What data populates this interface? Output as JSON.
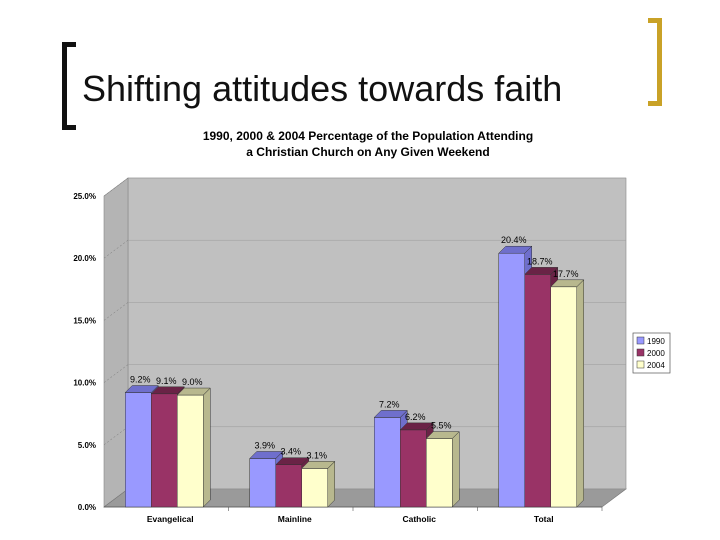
{
  "slide": {
    "title": "Shifting attitudes towards faith"
  },
  "chart_data": {
    "type": "bar",
    "title_lines": [
      "1990, 2000 & 2004 Percentage of the Population Attending",
      "a Christian Church on Any Given Weekend"
    ],
    "categories": [
      "Evangelical",
      "Mainline",
      "Catholic",
      "Total"
    ],
    "series": [
      {
        "name": "1990",
        "values": [
          9.2,
          3.9,
          7.2,
          20.4
        ],
        "labels": [
          "9.2%",
          "3.9%",
          "7.2%",
          "20.4%"
        ],
        "color": "#9999ff",
        "side": "#6f6fcc"
      },
      {
        "name": "2000",
        "values": [
          9.1,
          3.4,
          6.2,
          18.7
        ],
        "labels": [
          "9.1%",
          "3.4%",
          "6.2%",
          "18.7%"
        ],
        "color": "#993366",
        "side": "#6a2346"
      },
      {
        "name": "2004",
        "values": [
          9.0,
          3.1,
          5.5,
          17.7
        ],
        "labels": [
          "9.0%",
          "3.1%",
          "5.5%",
          "17.7%"
        ],
        "color": "#ffffcc",
        "side": "#b8b88e"
      }
    ],
    "ylim": [
      0,
      25
    ],
    "y_ticks": [
      0,
      5,
      10,
      15,
      20,
      25
    ],
    "y_tick_labels": [
      "0.0%",
      "5.0%",
      "10.0%",
      "15.0%",
      "20.0%",
      "25.0%"
    ],
    "grid": true,
    "three_d": true,
    "legend": "right",
    "wall_color": "#c0c0c0"
  }
}
